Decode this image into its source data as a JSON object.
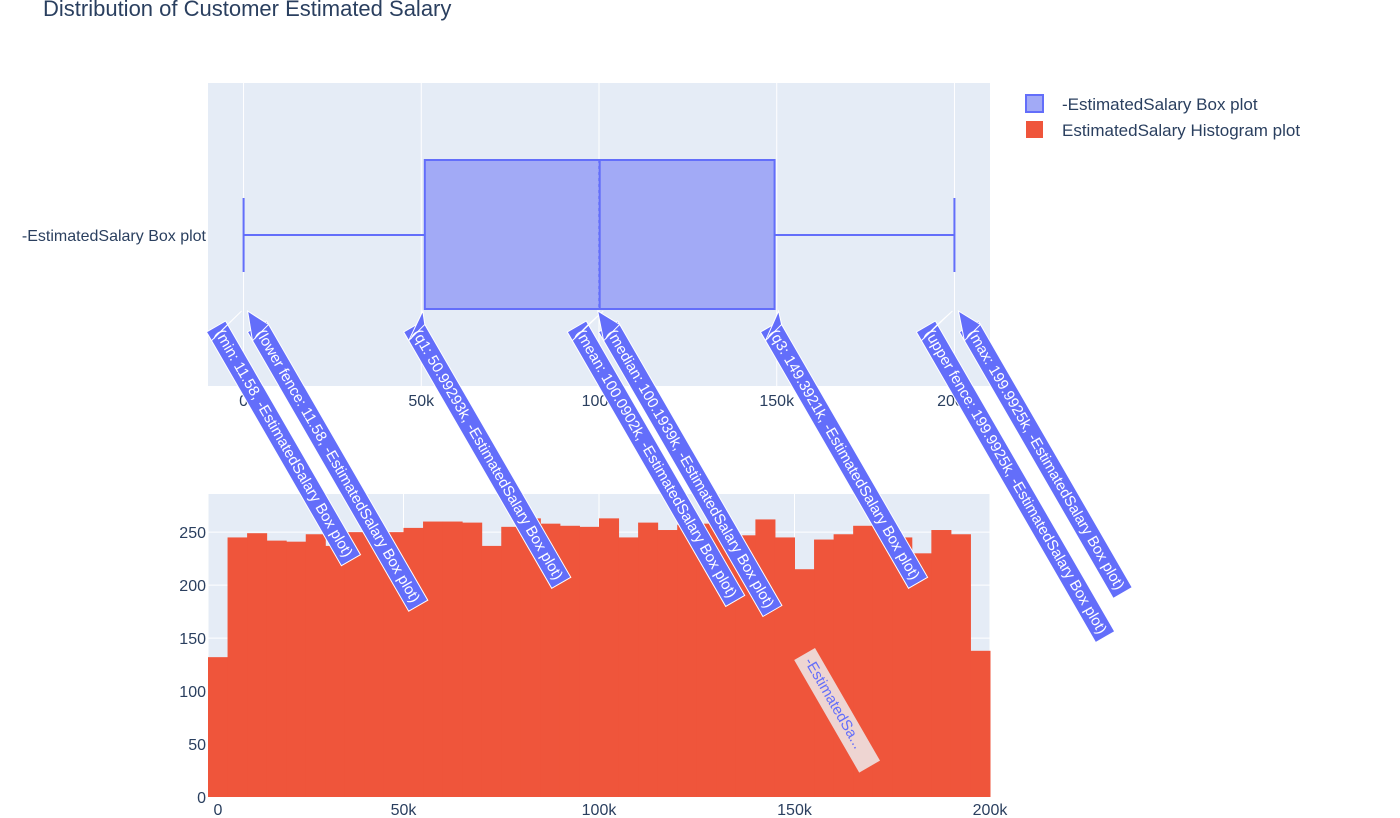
{
  "chart_data": {
    "title": "Distribution of Customer Estimated Salary",
    "colors": {
      "box": "#636efa",
      "box_fill": "#a2aaf6",
      "hist": "#ef553b",
      "plot_bg": "#e5ecf6",
      "hover_label_bg": "#eed5d2"
    },
    "legend": {
      "position": "top-right",
      "items": [
        {
          "name": "-EstimatedSalary Box plot",
          "icon": "box-swatch"
        },
        {
          "name": "EstimatedSalary Histogram plot",
          "icon": "histogram-swatch"
        }
      ]
    },
    "box": {
      "type": "box",
      "name": "-EstimatedSalary Box plot",
      "category_label": "-EstimatedSalary Box plot",
      "orientation": "horizontal",
      "stats": {
        "min": 11.58,
        "lower_fence": 11.58,
        "q1": 50992.93,
        "median": 100193.9,
        "mean": 100090.2,
        "q3": 149392.1,
        "upper_fence": 199992.5,
        "max": 199992.5
      },
      "xlim": [
        -10000,
        210000
      ],
      "xticks": [
        0,
        50000,
        100000,
        150000,
        200000
      ],
      "xtick_labels": [
        "0",
        "50k",
        "100k",
        "150k",
        "200k"
      ],
      "grid": true,
      "annotations": [
        {
          "text": "(min: 11.58, -EstimatedSalary Box plot)",
          "x": 11.58
        },
        {
          "text": "(lower fence: 11.58, -EstimatedSalary Box plot)",
          "x": 11.58
        },
        {
          "text": "(q1: 50.99293k, -EstimatedSalary Box plot)",
          "x": 50992.93
        },
        {
          "text": "(mean: 100.0902k, -EstimatedSalary Box plot)",
          "x": 100090.2
        },
        {
          "text": "(median: 100.1939k, -EstimatedSalary Box plot)",
          "x": 100193.9
        },
        {
          "text": "(q3: 149.3921k, -EstimatedSalary Box plot)",
          "x": 149392.1
        },
        {
          "text": "(upper fence: 199.9925k, -EstimatedSalary Box plot)",
          "x": 199992.5
        },
        {
          "text": "(max: 199.9925k, -EstimatedSalary Box plot)",
          "x": 199992.5
        }
      ],
      "hover_label": "-EstimatedSa..."
    },
    "histogram": {
      "type": "bar",
      "name": "EstimatedSalary Histogram plot",
      "bin_width": 5000,
      "bin_starts": [
        0,
        5000,
        10000,
        15000,
        20000,
        25000,
        30000,
        35000,
        40000,
        45000,
        50000,
        55000,
        60000,
        65000,
        70000,
        75000,
        80000,
        85000,
        90000,
        95000,
        100000,
        105000,
        110000,
        115000,
        120000,
        125000,
        130000,
        135000,
        140000,
        145000,
        150000,
        155000,
        160000,
        165000,
        170000,
        175000,
        180000,
        185000,
        190000,
        195000
      ],
      "values": [
        132,
        245,
        249,
        242,
        241,
        248,
        237,
        250,
        251,
        250,
        254,
        260,
        260,
        259,
        237,
        255,
        263,
        258,
        256,
        255,
        263,
        245,
        259,
        252,
        257,
        258,
        252,
        247,
        262,
        245,
        215,
        243,
        248,
        256,
        258,
        245,
        230,
        252,
        248,
        138
      ],
      "xlim": [
        0,
        200000
      ],
      "ylim": [
        0,
        286
      ],
      "xticks": [
        0,
        50000,
        100000,
        150000,
        200000
      ],
      "xtick_labels": [
        "0",
        "50k",
        "100k",
        "150k",
        "200k"
      ],
      "yticks": [
        0,
        50,
        100,
        150,
        200,
        250
      ],
      "ytick_labels": [
        "0",
        "50",
        "100",
        "150",
        "200",
        "250"
      ],
      "grid": true
    }
  }
}
